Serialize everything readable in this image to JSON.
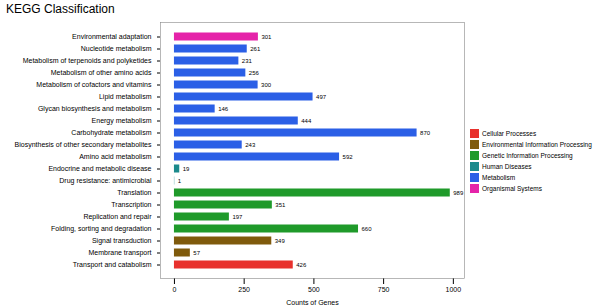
{
  "chart_data": {
    "type": "bar",
    "title": "KEGG Classification",
    "orientation": "horizontal",
    "x_label": "Counts of Genes",
    "categories": [
      "Environmental adaptation",
      "Nucleotide metabolism",
      "Metabolism of terpenoids and polyketides",
      "Metabolism of other amino acids",
      "Metabolism of cofactors and vitamins",
      "Lipid metabolism",
      "Glycan biosynthesis and metabolism",
      "Energy metabolism",
      "Carbohydrate metabolism",
      "Biosynthesis of other secondary metabolites",
      "Amino acid metabolism",
      "Endocrine and metabolic disease",
      "Drug resistance: antimicrobial",
      "Translation",
      "Transcription",
      "Replication and repair",
      "Folding, sorting and degradation",
      "Signal transduction",
      "Membrane transport",
      "Transport and catabolism"
    ],
    "series": [
      {
        "name": "Cellular Processes",
        "color": "#e8312d",
        "values": [
          null,
          null,
          null,
          null,
          null,
          null,
          null,
          null,
          null,
          null,
          null,
          null,
          null,
          null,
          null,
          null,
          null,
          null,
          null,
          426
        ]
      },
      {
        "name": "Environmental Information Processing",
        "color": "#7f5a0c",
        "values": [
          null,
          null,
          null,
          null,
          null,
          null,
          null,
          null,
          null,
          null,
          null,
          null,
          null,
          null,
          null,
          null,
          null,
          349,
          57,
          null
        ]
      },
      {
        "name": "Genetic Information Processing",
        "color": "#1f9a2a",
        "values": [
          null,
          null,
          null,
          null,
          null,
          null,
          null,
          null,
          null,
          null,
          null,
          null,
          null,
          989,
          351,
          197,
          660,
          null,
          null,
          null
        ]
      },
      {
        "name": "Human Diseases",
        "color": "#1b8a8c",
        "values": [
          null,
          null,
          null,
          null,
          null,
          null,
          null,
          null,
          null,
          null,
          null,
          19,
          1,
          null,
          null,
          null,
          null,
          null,
          null,
          null
        ]
      },
      {
        "name": "Metabolism",
        "color": "#2b5fe6",
        "values": [
          null,
          261,
          231,
          256,
          300,
          497,
          146,
          444,
          870,
          243,
          592,
          null,
          null,
          null,
          null,
          null,
          null,
          null,
          null,
          null
        ]
      },
      {
        "name": "Organismal Systems",
        "color": "#e523a9",
        "values": [
          301,
          null,
          null,
          null,
          null,
          null,
          null,
          null,
          null,
          null,
          null,
          null,
          null,
          null,
          null,
          null,
          null,
          null,
          null,
          null
        ]
      }
    ],
    "xlim": [
      -50,
      1040
    ],
    "xticks": [
      0,
      250,
      500,
      750,
      1000
    ],
    "grid": false,
    "data_labels": true,
    "legend": "right"
  }
}
